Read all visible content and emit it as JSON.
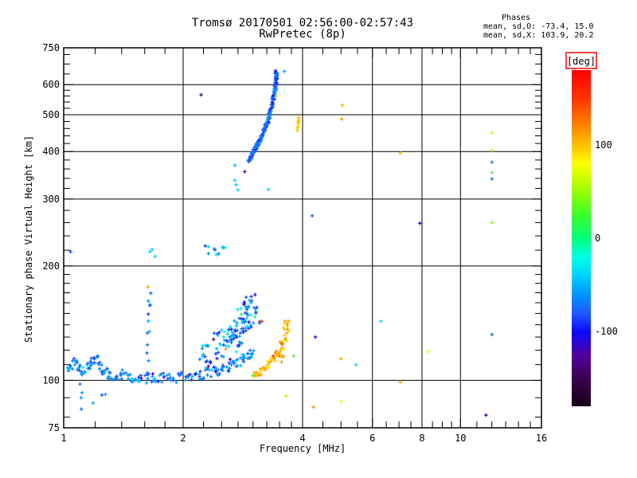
{
  "header": {
    "title_line1": "Tromsø 20170501 02:56:00-02:57:43",
    "title_line2": "RwPretec (8p)",
    "stats_title": "Phases",
    "stats_line_o": "mean, sd,O: -73.4, 15.0",
    "stats_line_x": "mean, sd,X: 103.9, 20.2"
  },
  "colors": {
    "axis": "#000000",
    "background": "#ffffff",
    "deg_box_border": "#ff0000",
    "text": "#000000"
  },
  "chart_data": {
    "type": "scatter",
    "title": "Tromsø 20170501 02:56:00-02:57:43",
    "subtitle": "RwPretec (8p)",
    "xlabel": "Frequency [MHz]",
    "ylabel": "Stationary phase Virtual Height [km]",
    "x_scale": "log",
    "y_scale": "log",
    "xlim": [
      1,
      16
    ],
    "ylim": [
      75,
      750
    ],
    "x_major_ticks": [
      1,
      2,
      4,
      6,
      8,
      10,
      16
    ],
    "x_minor_ticks": [
      1.2,
      1.4,
      1.6,
      1.8,
      2.25,
      2.5,
      2.75,
      3,
      3.25,
      3.5,
      3.75,
      4.5,
      5,
      5.5,
      6.5,
      7,
      7.5,
      8.5,
      9,
      9.5,
      11,
      12,
      13,
      14,
      15
    ],
    "y_major_ticks": [
      75,
      100,
      200,
      300,
      400,
      500,
      600,
      750
    ],
    "y_minor_ticks": [
      80,
      90,
      110,
      120,
      130,
      140,
      150,
      160,
      170,
      180,
      190,
      220,
      240,
      260,
      280,
      320,
      340,
      360,
      380,
      420,
      440,
      460,
      480,
      520,
      540,
      560,
      580,
      640,
      680,
      720
    ],
    "grid_x": [
      2,
      4,
      6,
      8,
      10
    ],
    "grid_y": [
      100,
      200,
      300,
      400,
      500,
      600
    ],
    "legend_position": "right-colorbar",
    "grid": true,
    "colorbar": {
      "label": "[deg]",
      "ticks": [
        100,
        0,
        -100
      ],
      "range": [
        -180,
        180
      ],
      "stops": [
        {
          "v": -180,
          "c": "#140014"
        },
        {
          "v": -150,
          "c": "#3c0050"
        },
        {
          "v": -125,
          "c": "#5000a0"
        },
        {
          "v": -100,
          "c": "#0a0aff"
        },
        {
          "v": -80,
          "c": "#1e5aff"
        },
        {
          "v": -60,
          "c": "#0096ff"
        },
        {
          "v": -40,
          "c": "#00d2ff"
        },
        {
          "v": -20,
          "c": "#00ffe6"
        },
        {
          "v": 0,
          "c": "#00ff78"
        },
        {
          "v": 25,
          "c": "#3cff28"
        },
        {
          "v": 55,
          "c": "#aaff00"
        },
        {
          "v": 80,
          "c": "#ffff00"
        },
        {
          "v": 100,
          "c": "#ffbe00"
        },
        {
          "v": 125,
          "c": "#ff7800"
        },
        {
          "v": 150,
          "c": "#ff3200"
        },
        {
          "v": 180,
          "c": "#ff0000"
        }
      ]
    },
    "series_stats": {
      "o_mode": {
        "mean_deg": -73.4,
        "sd_deg": 15.0
      },
      "x_mode": {
        "mean_deg": 103.9,
        "sd_deg": 20.2
      }
    },
    "traces": [
      {
        "name": "e-region-band-o-mode",
        "n": 190,
        "jf": 0.012,
        "jh": 0.03,
        "phase_mean": -68,
        "phase_sd": 16,
        "spine": [
          [
            1.02,
            106
          ],
          [
            1.07,
            112
          ],
          [
            1.11,
            104
          ],
          [
            1.16,
            111
          ],
          [
            1.21,
            114
          ],
          [
            1.26,
            106
          ],
          [
            1.32,
            102
          ],
          [
            1.4,
            104
          ],
          [
            1.5,
            100
          ],
          [
            1.6,
            101
          ],
          [
            1.72,
            102
          ],
          [
            1.85,
            101
          ],
          [
            2.0,
            102
          ],
          [
            2.15,
            103
          ],
          [
            2.3,
            104
          ],
          [
            2.45,
            106
          ],
          [
            2.6,
            108
          ],
          [
            2.75,
            111
          ],
          [
            2.9,
            115
          ],
          [
            3.0,
            118
          ]
        ]
      },
      {
        "name": "e-region-below-100km",
        "n": 7,
        "jf": 0.01,
        "jh": 0.02,
        "phase_mean": -70,
        "phase_sd": 10,
        "spine": [
          [
            1.1,
            96
          ],
          [
            1.105,
            90
          ],
          [
            1.11,
            85
          ],
          [
            1.22,
            90
          ],
          [
            1.28,
            93
          ]
        ]
      },
      {
        "name": "e-column-1.6mhz",
        "n": 12,
        "jf": 0.012,
        "jh": 0.05,
        "phase_mean": -70,
        "phase_sd": 15,
        "spine": [
          [
            1.62,
            108
          ],
          [
            1.64,
            130
          ],
          [
            1.63,
            150
          ],
          [
            1.65,
            170
          ]
        ]
      },
      {
        "name": "e-f-diffuse-cloud",
        "n": 125,
        "jf": 0.05,
        "jh": 0.09,
        "phase_mean": -62,
        "phase_sd": 26,
        "spine": [
          [
            2.3,
            113
          ],
          [
            2.45,
            120
          ],
          [
            2.58,
            127
          ],
          [
            2.7,
            134
          ],
          [
            2.82,
            142
          ],
          [
            2.92,
            150
          ],
          [
            3.02,
            157
          ]
        ]
      },
      {
        "name": "f-region-o-mode-trace",
        "n": 160,
        "jf": 0.007,
        "jh": 0.012,
        "phase_mean": -75,
        "phase_sd": 12,
        "spine": [
          [
            2.93,
            378
          ],
          [
            2.97,
            390
          ],
          [
            3.02,
            402
          ],
          [
            3.07,
            415
          ],
          [
            3.12,
            428
          ],
          [
            3.17,
            443
          ],
          [
            3.22,
            460
          ],
          [
            3.27,
            480
          ],
          [
            3.31,
            502
          ],
          [
            3.35,
            528
          ],
          [
            3.38,
            556
          ],
          [
            3.41,
            585
          ],
          [
            3.43,
            612
          ],
          [
            3.44,
            632
          ],
          [
            3.43,
            645
          ]
        ]
      },
      {
        "name": "x-mode-lower-arc",
        "n": 40,
        "jf": 0.008,
        "jh": 0.02,
        "phase_mean": 102,
        "phase_sd": 12,
        "spine": [
          [
            3.02,
            103
          ],
          [
            3.12,
            105
          ],
          [
            3.22,
            108
          ],
          [
            3.32,
            112
          ],
          [
            3.42,
            116
          ],
          [
            3.5,
            120
          ]
        ]
      },
      {
        "name": "x-mode-column",
        "n": 30,
        "jf": 0.02,
        "jh": 0.06,
        "phase_mean": 105,
        "phase_sd": 16,
        "spine": [
          [
            3.52,
            116
          ],
          [
            3.58,
            124
          ],
          [
            3.62,
            132
          ],
          [
            3.64,
            140
          ]
        ]
      },
      {
        "name": "x-mode-f-echo-streak",
        "n": 9,
        "jf": 0.004,
        "jh": 0.012,
        "phase_mean": 92,
        "phase_sd": 10,
        "spine": [
          [
            3.87,
            455
          ],
          [
            3.89,
            468
          ],
          [
            3.9,
            478
          ],
          [
            3.92,
            490
          ]
        ]
      },
      {
        "name": "sporadic-cluster-220km",
        "n": 10,
        "jf": 0.015,
        "jh": 0.025,
        "phase_mean": -58,
        "phase_sd": 20,
        "spine": [
          [
            2.26,
            223
          ],
          [
            2.42,
            218
          ],
          [
            2.55,
            221
          ]
        ]
      }
    ],
    "points": [
      [
        1.04,
        218,
        -85
      ],
      [
        1.65,
        218,
        -40
      ],
      [
        1.67,
        221,
        -42
      ],
      [
        1.7,
        212,
        -38
      ],
      [
        1.63,
        176,
        108
      ],
      [
        2.22,
        564,
        -140
      ],
      [
        2.86,
        354,
        -132
      ],
      [
        2.7,
        368,
        -45
      ],
      [
        2.7,
        336,
        -42
      ],
      [
        2.72,
        327,
        -45
      ],
      [
        2.75,
        317,
        -40
      ],
      [
        3.28,
        318,
        -40
      ],
      [
        3.6,
        650,
        -55
      ],
      [
        3.44,
        560,
        92
      ],
      [
        4.23,
        271,
        -80
      ],
      [
        3.16,
        143,
        148
      ],
      [
        2.56,
        121,
        112
      ],
      [
        3.8,
        116,
        28
      ],
      [
        3.0,
        103,
        25
      ],
      [
        5.04,
        530,
        105
      ],
      [
        5.02,
        487,
        112
      ],
      [
        7.05,
        396,
        100
      ],
      [
        7.9,
        259,
        -112
      ],
      [
        12.0,
        448,
        62
      ],
      [
        12.0,
        403,
        66
      ],
      [
        12.0,
        375,
        -70
      ],
      [
        12.0,
        352,
        30
      ],
      [
        12.0,
        339,
        -72
      ],
      [
        12.0,
        260,
        45
      ],
      [
        4.31,
        130,
        -95
      ],
      [
        6.3,
        143,
        -35
      ],
      [
        5.0,
        114,
        110
      ],
      [
        5.45,
        110,
        -40
      ],
      [
        8.3,
        119,
        85
      ],
      [
        12.0,
        132,
        -75
      ],
      [
        7.05,
        99,
        110
      ],
      [
        5.0,
        88,
        85
      ],
      [
        4.26,
        85,
        115
      ],
      [
        3.63,
        91,
        55
      ],
      [
        11.6,
        81,
        -112
      ]
    ]
  }
}
